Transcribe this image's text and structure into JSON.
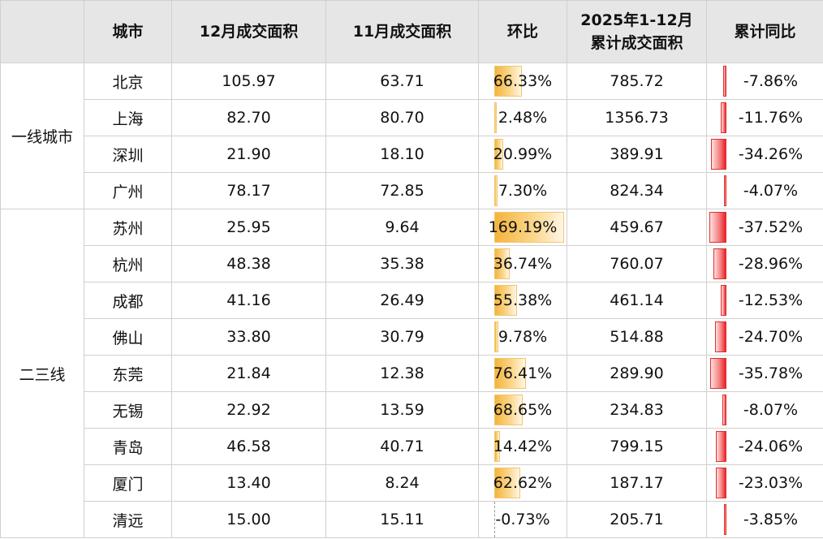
{
  "headers": [
    "城市",
    "12月成交面积",
    "11月成交面积",
    "环比",
    "2025年1-12月\n累计成交面积",
    "累计同比"
  ],
  "groups": [
    {
      "name": "一线城市",
      "rows": [
        {
          "city": "北京",
          "dec": "105.97",
          "nov": "63.71",
          "mom": "66.33%",
          "mom_value": 66.33,
          "ytd": "785.72",
          "yoy": "-7.86%",
          "yoy_value": -7.86
        },
        {
          "city": "上海",
          "dec": "82.70",
          "nov": "80.70",
          "mom": "2.48%",
          "mom_value": 2.48,
          "ytd": "1356.73",
          "yoy": "-11.76%",
          "yoy_value": -11.76
        },
        {
          "city": "深圳",
          "dec": "21.90",
          "nov": "18.10",
          "mom": "20.99%",
          "mom_value": 20.99,
          "ytd": "389.91",
          "yoy": "-34.26%",
          "yoy_value": -34.26
        },
        {
          "city": "广州",
          "dec": "78.17",
          "nov": "72.85",
          "mom": "7.30%",
          "mom_value": 7.3,
          "ytd": "824.34",
          "yoy": "-4.07%",
          "yoy_value": -4.07
        }
      ]
    },
    {
      "name": "二三线",
      "rows": [
        {
          "city": "苏州",
          "dec": "25.95",
          "nov": "9.64",
          "mom": "169.19%",
          "mom_value": 169.19,
          "ytd": "459.67",
          "yoy": "-37.52%",
          "yoy_value": -37.52
        },
        {
          "city": "杭州",
          "dec": "48.38",
          "nov": "35.38",
          "mom": "36.74%",
          "mom_value": 36.74,
          "ytd": "760.07",
          "yoy": "-28.96%",
          "yoy_value": -28.96
        },
        {
          "city": "成都",
          "dec": "41.16",
          "nov": "26.49",
          "mom": "55.38%",
          "mom_value": 55.38,
          "ytd": "461.14",
          "yoy": "-12.53%",
          "yoy_value": -12.53
        },
        {
          "city": "佛山",
          "dec": "33.80",
          "nov": "30.79",
          "mom": "9.78%",
          "mom_value": 9.78,
          "ytd": "514.88",
          "yoy": "-24.70%",
          "yoy_value": -24.7
        },
        {
          "city": "东莞",
          "dec": "21.84",
          "nov": "12.38",
          "mom": "76.41%",
          "mom_value": 76.41,
          "ytd": "289.90",
          "yoy": "-35.78%",
          "yoy_value": -35.78
        },
        {
          "city": "无锡",
          "dec": "22.92",
          "nov": "13.59",
          "mom": "68.65%",
          "mom_value": 68.65,
          "ytd": "234.83",
          "yoy": "-8.07%",
          "yoy_value": -8.07
        },
        {
          "city": "青岛",
          "dec": "46.58",
          "nov": "40.71",
          "mom": "14.42%",
          "mom_value": 14.42,
          "ytd": "799.15",
          "yoy": "-24.06%",
          "yoy_value": -24.06
        },
        {
          "city": "厦门",
          "dec": "13.40",
          "nov": "8.24",
          "mom": "62.62%",
          "mom_value": 62.62,
          "ytd": "187.17",
          "yoy": "-23.03%",
          "yoy_value": -23.03
        },
        {
          "city": "清远",
          "dec": "15.00",
          "nov": "15.11",
          "mom": "-0.73%",
          "mom_value": -0.73,
          "ytd": "205.71",
          "yoy": "-3.85%",
          "yoy_value": -3.85
        }
      ]
    }
  ],
  "colors": {
    "mom_bar": "#f4b43c",
    "yoy_bar": "#e8212a",
    "header_bg": "#e6e6e6"
  }
}
